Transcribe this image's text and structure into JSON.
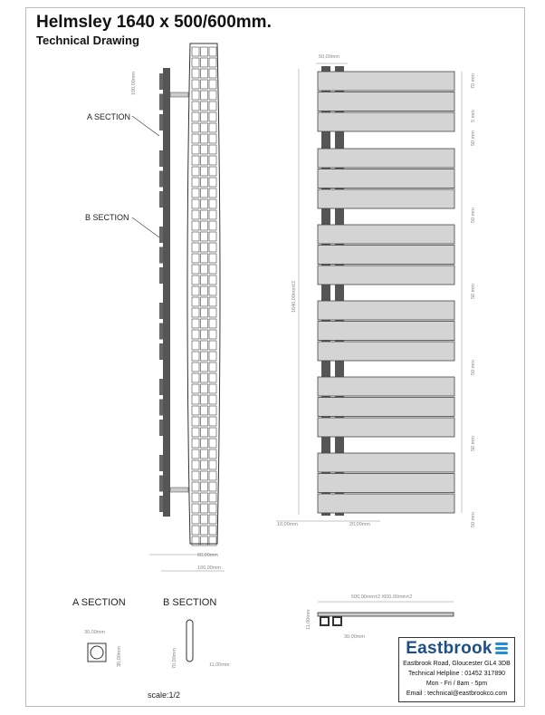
{
  "header": {
    "title": "Helmsley 1640 x 500/600mm.",
    "subtitle": "Technical Drawing"
  },
  "side_view": {
    "a_section": "A SECTION",
    "b_section": "B SECTION",
    "dim_top": "100,00mm",
    "dim_depth1": "80,00mm",
    "dim_depth2": "106,00mm"
  },
  "front_view": {
    "dim_tubes": "50,00mm",
    "dim_bar": "70 mm",
    "dim_gap_small": "5 mm",
    "dim_gap": "50 mm",
    "dim_height": "1640,00mm±2",
    "dim_left": "10,00mm",
    "dim_tube": "20,00mm"
  },
  "sections": {
    "a_title": "A SECTION",
    "b_title": "B SECTION",
    "a_width": "30,00mm",
    "a_height": "30,00mm",
    "b_height": "70,00mm",
    "b_width": "11,00mm"
  },
  "top_view": {
    "dim_width": "500,00mm±2 /600,00mm±2",
    "dim_depth": "11,00mm",
    "dim_offset": "30,00mm"
  },
  "scale": "scale:1/2",
  "company": {
    "name": "Eastbrook",
    "address": "Eastbrook Road, Gloucester GL4 3DB",
    "helpline": "Technical Helpline : 01452 317890",
    "hours": "Mon - Fri / 8am - 5pm",
    "email": "Email : technical@eastbrookco.com",
    "brand_color": "#1c4f86",
    "accent_color": "#1e8fd8"
  }
}
